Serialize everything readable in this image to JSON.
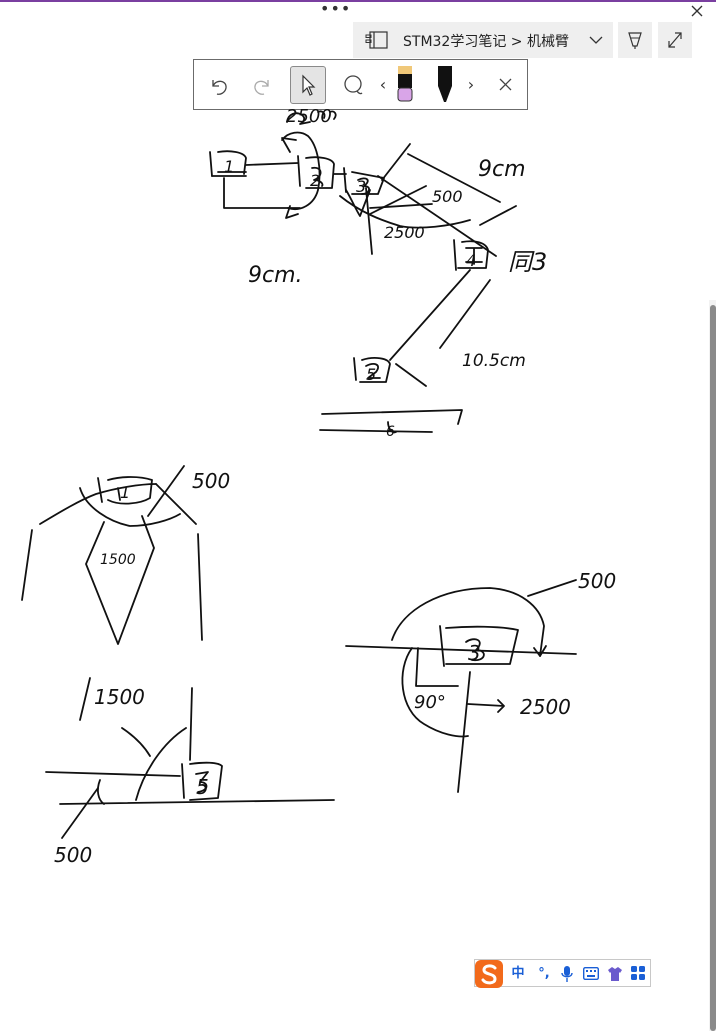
{
  "window": {
    "more_glyph": "•••",
    "close_glyph": "×"
  },
  "breadcrumb": {
    "text": "STM32学习笔记 > 机械臂"
  },
  "ink_toolbar": {
    "prev_glyph": "‹",
    "next_glyph": "›",
    "pen_colors": [
      "#f0c879",
      "#d9a5e8",
      "#111111"
    ]
  },
  "ime": {
    "mode_label": "中",
    "punct_label": "°,"
  },
  "handwriting": {
    "labels": [
      "2500",
      "9cm",
      "500",
      "9cm.",
      "2500",
      "同3",
      "10.5cm",
      "500",
      "1500",
      "500",
      "90°",
      "2500",
      "1500",
      "500"
    ],
    "joints": [
      "1",
      "2",
      "3",
      "4",
      "5",
      "6",
      "1",
      "3",
      "5"
    ]
  },
  "colors": {
    "accent": "#7a3fa0",
    "ink": "#111111",
    "bar_bg": "#efefef"
  }
}
